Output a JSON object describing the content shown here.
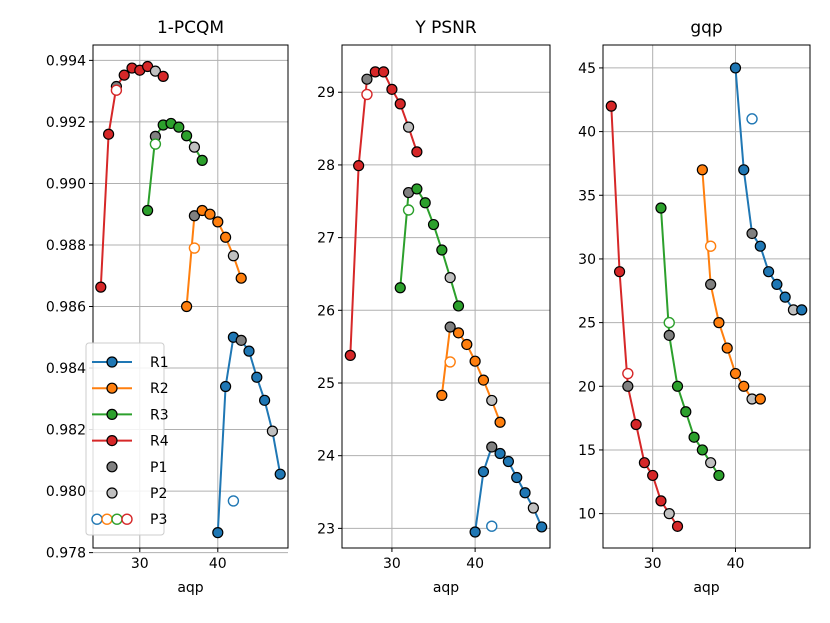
{
  "chart_data": [
    {
      "type": "line",
      "title": "1-PCQM",
      "xlabel": "aqp",
      "ylabel": "",
      "xlim": [
        24,
        49
      ],
      "ylim": [
        0.97815,
        0.9945
      ],
      "xticks": [
        30,
        40
      ],
      "xtick_labels": [
        "30",
        "40"
      ],
      "yticks": [
        0.978,
        0.98,
        0.982,
        0.984,
        0.986,
        0.988,
        0.99,
        0.992,
        0.994
      ],
      "ytick_labels": [
        "0.978",
        "0.980",
        "0.982",
        "0.984",
        "0.986",
        "0.988",
        "0.990",
        "0.992",
        "0.994"
      ],
      "grid": true,
      "series": [
        {
          "name": "R1",
          "color": "#1f77b4",
          "x": [
            40,
            41,
            42,
            43,
            44,
            45,
            46,
            47,
            48
          ],
          "y": [
            0.97865,
            0.9834,
            0.985,
            0.9849,
            0.98455,
            0.9837,
            0.98295,
            0.98195,
            0.98055
          ],
          "p1": [
            3
          ],
          "p2": [
            7
          ],
          "p3": {
            "x": 42,
            "y": 0.97968
          }
        },
        {
          "name": "R2",
          "color": "#ff7f0e",
          "x": [
            36,
            37,
            38,
            39,
            40,
            41,
            42,
            43
          ],
          "y": [
            0.986,
            0.98895,
            0.98912,
            0.989,
            0.98875,
            0.98825,
            0.98765,
            0.98692
          ],
          "p1": [
            1
          ],
          "p2": [
            6
          ],
          "p3": {
            "x": 37,
            "y": 0.9879
          }
        },
        {
          "name": "R3",
          "color": "#2ca02c",
          "x": [
            31,
            32,
            33,
            34,
            35,
            36,
            37,
            38
          ],
          "y": [
            0.98912,
            0.99153,
            0.9919,
            0.99195,
            0.99183,
            0.99155,
            0.99118,
            0.99075
          ],
          "p1": [
            1
          ],
          "p2": [
            6
          ],
          "p3": {
            "x": 32,
            "y": 0.99128
          }
        },
        {
          "name": "R4",
          "color": "#d62728",
          "x": [
            25,
            26,
            27,
            28,
            29,
            30,
            31,
            32,
            33
          ],
          "y": [
            0.98663,
            0.9916,
            0.99315,
            0.99352,
            0.99375,
            0.99368,
            0.9938,
            0.99365,
            0.99348
          ],
          "p1": [
            2
          ],
          "p2": [
            7
          ],
          "p3": {
            "x": 27,
            "y": 0.99303
          }
        }
      ]
    },
    {
      "type": "line",
      "title": "Y PSNR",
      "xlabel": "aqp",
      "ylabel": "",
      "xlim": [
        24,
        49
      ],
      "ylim": [
        22.73,
        29.65
      ],
      "xticks": [
        30,
        40
      ],
      "xtick_labels": [
        "30",
        "40"
      ],
      "yticks": [
        23,
        24,
        25,
        26,
        27,
        28,
        29
      ],
      "ytick_labels": [
        "23",
        "24",
        "25",
        "26",
        "27",
        "28",
        "29"
      ],
      "grid": true,
      "series": [
        {
          "name": "R1",
          "color": "#1f77b4",
          "x": [
            40,
            41,
            42,
            43,
            44,
            45,
            46,
            47,
            48
          ],
          "y": [
            22.95,
            23.78,
            24.12,
            24.03,
            23.92,
            23.7,
            23.49,
            23.28,
            23.02
          ],
          "p1": [
            2
          ],
          "p2": [
            7
          ],
          "p3": {
            "x": 42,
            "y": 23.03
          }
        },
        {
          "name": "R2",
          "color": "#ff7f0e",
          "x": [
            36,
            37,
            38,
            39,
            40,
            41,
            42,
            43
          ],
          "y": [
            24.83,
            25.77,
            25.69,
            25.53,
            25.3,
            25.04,
            24.76,
            24.46
          ],
          "p1": [
            1
          ],
          "p2": [
            6
          ],
          "p3": {
            "x": 37,
            "y": 25.29
          }
        },
        {
          "name": "R3",
          "color": "#2ca02c",
          "x": [
            31,
            32,
            33,
            34,
            35,
            36,
            37,
            38
          ],
          "y": [
            26.31,
            27.62,
            27.67,
            27.48,
            27.18,
            26.83,
            26.45,
            26.06
          ],
          "p1": [
            1
          ],
          "p2": [
            6
          ],
          "p3": {
            "x": 32,
            "y": 27.38
          }
        },
        {
          "name": "R4",
          "color": "#d62728",
          "x": [
            25,
            26,
            27,
            28,
            29,
            30,
            31,
            32,
            33
          ],
          "y": [
            25.38,
            27.99,
            29.18,
            29.28,
            29.28,
            29.04,
            28.84,
            28.52,
            28.18
          ],
          "p1": [
            2
          ],
          "p2": [
            7
          ],
          "p3": {
            "x": 27,
            "y": 28.97
          }
        }
      ]
    },
    {
      "type": "line",
      "title": "gqp",
      "xlabel": "aqp",
      "ylabel": "",
      "xlim": [
        24,
        49
      ],
      "ylim": [
        7.3,
        46.8
      ],
      "xticks": [
        30,
        40
      ],
      "xtick_labels": [
        "30",
        "40"
      ],
      "yticks": [
        10,
        15,
        20,
        25,
        30,
        35,
        40,
        45
      ],
      "ytick_labels": [
        "10",
        "15",
        "20",
        "25",
        "30",
        "35",
        "40",
        "45"
      ],
      "grid": true,
      "series": [
        {
          "name": "R1",
          "color": "#1f77b4",
          "x": [
            40,
            41,
            42,
            43,
            44,
            45,
            46,
            47,
            48
          ],
          "y": [
            45,
            37,
            32,
            31,
            29,
            28,
            27,
            26,
            26
          ],
          "p1": [
            2
          ],
          "p2": [
            7
          ],
          "p3": {
            "x": 42,
            "y": 41
          }
        },
        {
          "name": "R2",
          "color": "#ff7f0e",
          "x": [
            36,
            37,
            38,
            39,
            40,
            41,
            42,
            43
          ],
          "y": [
            37,
            28,
            25,
            23,
            21,
            20,
            19,
            19
          ],
          "p1": [
            1
          ],
          "p2": [
            6
          ],
          "p3": {
            "x": 37,
            "y": 31
          }
        },
        {
          "name": "R3",
          "color": "#2ca02c",
          "x": [
            31,
            32,
            33,
            34,
            35,
            36,
            37,
            38
          ],
          "y": [
            34,
            24,
            20,
            18,
            16,
            15,
            14,
            13
          ],
          "p1": [
            1
          ],
          "p2": [
            6
          ],
          "p3": {
            "x": 32,
            "y": 25
          }
        },
        {
          "name": "R4",
          "color": "#d62728",
          "x": [
            25,
            26,
            27,
            28,
            29,
            30,
            31,
            32,
            33
          ],
          "y": [
            42,
            29,
            20,
            17,
            14,
            13,
            11,
            10,
            9
          ],
          "p1": [
            2
          ],
          "p2": [
            7
          ],
          "p3": {
            "x": 27,
            "y": 21
          }
        }
      ]
    }
  ],
  "legend": {
    "placement": "lower-left of first panel",
    "entries": [
      {
        "label": "R1",
        "kind": "line",
        "color": "#1f77b4"
      },
      {
        "label": "R2",
        "kind": "line",
        "color": "#ff7f0e"
      },
      {
        "label": "R3",
        "kind": "line",
        "color": "#2ca02c"
      },
      {
        "label": "R4",
        "kind": "line",
        "color": "#d62728"
      },
      {
        "label": "P1",
        "kind": "marker",
        "color": "#808080"
      },
      {
        "label": "P2",
        "kind": "marker",
        "color": "#c0c0c0"
      },
      {
        "label": "P3",
        "kind": "open-markers",
        "colors": [
          "#1f77b4",
          "#ff7f0e",
          "#2ca02c",
          "#d62728"
        ]
      }
    ]
  },
  "colors": {
    "p1_fill": "#808080",
    "p2_fill": "#c0c0c0",
    "grid": "#b0b0b0",
    "axis": "#000000"
  }
}
